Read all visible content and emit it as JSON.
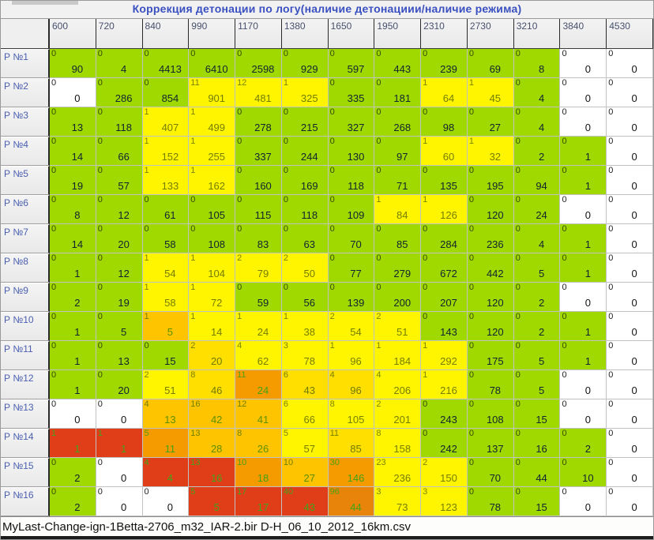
{
  "title": "Коррекция детонации по логу(наличие детонациии/наличие режима)",
  "status_bar": {
    "text": "MyLast-Change-ign-1Betta-2706_m32_IAR-2.bir D-H_06_10_2012_16km.csv"
  },
  "table": {
    "corner_label": "",
    "columns": [
      "600",
      "720",
      "840",
      "990",
      "1170",
      "1380",
      "1650",
      "1950",
      "2310",
      "2730",
      "3210",
      "3840",
      "4530"
    ],
    "cell_value_meaning": "top=наличие детонации, bottom=наличие режима",
    "palette": {
      "g": {
        "bg": "#9FD900",
        "t": "#3A4A00",
        "b": "#0F2430"
      },
      "w": {
        "bg": "#FFFFFF",
        "t": "#222222",
        "b": "#111111"
      },
      "y": {
        "bg": "#FFF500",
        "t": "#7B8400",
        "b": "#747E00"
      },
      "ya": {
        "bg": "#FFDF00",
        "t": "#777E00",
        "b": "#6F7A00"
      },
      "a": {
        "bg": "#FFC400",
        "t": "#6F7E00",
        "b": "#5E8F00"
      },
      "o": {
        "bg": "#F59B00",
        "t": "#4EA014",
        "b": "#44A314"
      },
      "d": {
        "bg": "#E88409",
        "t": "#4EA014",
        "b": "#44A314"
      },
      "r": {
        "bg": "#E03E18",
        "t": "#43A41B",
        "b": "#43A41B"
      }
    },
    "rows": [
      {
        "label": "Р №1",
        "cells": [
          [
            0,
            90,
            "g"
          ],
          [
            0,
            4,
            "g"
          ],
          [
            0,
            4413,
            "g"
          ],
          [
            0,
            6410,
            "g"
          ],
          [
            0,
            2598,
            "g"
          ],
          [
            0,
            929,
            "g"
          ],
          [
            0,
            597,
            "g"
          ],
          [
            0,
            443,
            "g"
          ],
          [
            0,
            239,
            "g"
          ],
          [
            0,
            69,
            "g"
          ],
          [
            0,
            8,
            "g"
          ],
          [
            0,
            0,
            "w"
          ],
          [
            0,
            0,
            "w"
          ]
        ]
      },
      {
        "label": "Р №2",
        "cells": [
          [
            0,
            0,
            "w"
          ],
          [
            0,
            286,
            "g"
          ],
          [
            0,
            854,
            "g"
          ],
          [
            11,
            901,
            "y"
          ],
          [
            12,
            481,
            "y"
          ],
          [
            1,
            325,
            "y"
          ],
          [
            0,
            335,
            "g"
          ],
          [
            0,
            181,
            "g"
          ],
          [
            1,
            64,
            "y"
          ],
          [
            1,
            45,
            "y"
          ],
          [
            0,
            4,
            "g"
          ],
          [
            0,
            0,
            "w"
          ],
          [
            0,
            0,
            "w"
          ]
        ]
      },
      {
        "label": "Р №3",
        "cells": [
          [
            0,
            13,
            "g"
          ],
          [
            0,
            118,
            "g"
          ],
          [
            1,
            407,
            "y"
          ],
          [
            1,
            499,
            "y"
          ],
          [
            0,
            278,
            "g"
          ],
          [
            0,
            215,
            "g"
          ],
          [
            0,
            327,
            "g"
          ],
          [
            0,
            268,
            "g"
          ],
          [
            0,
            98,
            "g"
          ],
          [
            0,
            27,
            "g"
          ],
          [
            0,
            4,
            "g"
          ],
          [
            0,
            0,
            "w"
          ],
          [
            0,
            0,
            "w"
          ]
        ]
      },
      {
        "label": "Р №4",
        "cells": [
          [
            0,
            14,
            "g"
          ],
          [
            0,
            66,
            "g"
          ],
          [
            1,
            152,
            "y"
          ],
          [
            1,
            255,
            "y"
          ],
          [
            0,
            337,
            "g"
          ],
          [
            0,
            244,
            "g"
          ],
          [
            0,
            130,
            "g"
          ],
          [
            0,
            97,
            "g"
          ],
          [
            1,
            60,
            "y"
          ],
          [
            1,
            32,
            "y"
          ],
          [
            0,
            2,
            "g"
          ],
          [
            0,
            1,
            "g"
          ],
          [
            0,
            0,
            "w"
          ]
        ]
      },
      {
        "label": "Р №5",
        "cells": [
          [
            0,
            19,
            "g"
          ],
          [
            0,
            57,
            "g"
          ],
          [
            1,
            133,
            "y"
          ],
          [
            1,
            162,
            "y"
          ],
          [
            0,
            160,
            "g"
          ],
          [
            0,
            169,
            "g"
          ],
          [
            0,
            118,
            "g"
          ],
          [
            0,
            71,
            "g"
          ],
          [
            0,
            135,
            "g"
          ],
          [
            0,
            195,
            "g"
          ],
          [
            0,
            94,
            "g"
          ],
          [
            0,
            1,
            "g"
          ],
          [
            0,
            0,
            "w"
          ]
        ]
      },
      {
        "label": "Р №6",
        "cells": [
          [
            0,
            8,
            "g"
          ],
          [
            0,
            12,
            "g"
          ],
          [
            0,
            61,
            "g"
          ],
          [
            0,
            105,
            "g"
          ],
          [
            0,
            115,
            "g"
          ],
          [
            0,
            118,
            "g"
          ],
          [
            0,
            109,
            "g"
          ],
          [
            1,
            84,
            "y"
          ],
          [
            1,
            126,
            "y"
          ],
          [
            0,
            120,
            "g"
          ],
          [
            0,
            24,
            "g"
          ],
          [
            0,
            0,
            "w"
          ],
          [
            0,
            0,
            "w"
          ]
        ]
      },
      {
        "label": "Р №7",
        "cells": [
          [
            0,
            14,
            "g"
          ],
          [
            0,
            20,
            "g"
          ],
          [
            0,
            58,
            "g"
          ],
          [
            0,
            108,
            "g"
          ],
          [
            0,
            83,
            "g"
          ],
          [
            0,
            63,
            "g"
          ],
          [
            0,
            70,
            "g"
          ],
          [
            0,
            85,
            "g"
          ],
          [
            0,
            284,
            "g"
          ],
          [
            0,
            236,
            "g"
          ],
          [
            0,
            4,
            "g"
          ],
          [
            0,
            1,
            "g"
          ],
          [
            0,
            0,
            "w"
          ]
        ]
      },
      {
        "label": "Р №8",
        "cells": [
          [
            0,
            1,
            "g"
          ],
          [
            0,
            12,
            "g"
          ],
          [
            1,
            54,
            "y"
          ],
          [
            1,
            104,
            "y"
          ],
          [
            2,
            79,
            "y"
          ],
          [
            2,
            50,
            "y"
          ],
          [
            0,
            77,
            "g"
          ],
          [
            0,
            279,
            "g"
          ],
          [
            0,
            672,
            "g"
          ],
          [
            0,
            442,
            "g"
          ],
          [
            0,
            5,
            "g"
          ],
          [
            0,
            1,
            "g"
          ],
          [
            0,
            0,
            "w"
          ]
        ]
      },
      {
        "label": "Р №9",
        "cells": [
          [
            0,
            2,
            "g"
          ],
          [
            0,
            19,
            "g"
          ],
          [
            1,
            58,
            "y"
          ],
          [
            1,
            72,
            "y"
          ],
          [
            0,
            59,
            "g"
          ],
          [
            0,
            56,
            "g"
          ],
          [
            0,
            139,
            "g"
          ],
          [
            0,
            200,
            "g"
          ],
          [
            0,
            207,
            "g"
          ],
          [
            0,
            120,
            "g"
          ],
          [
            0,
            2,
            "g"
          ],
          [
            0,
            0,
            "w"
          ],
          [
            0,
            0,
            "w"
          ]
        ]
      },
      {
        "label": "Р №10",
        "cells": [
          [
            0,
            1,
            "g"
          ],
          [
            0,
            5,
            "g"
          ],
          [
            1,
            5,
            "a"
          ],
          [
            1,
            14,
            "y"
          ],
          [
            1,
            24,
            "y"
          ],
          [
            1,
            38,
            "y"
          ],
          [
            2,
            54,
            "y"
          ],
          [
            2,
            51,
            "y"
          ],
          [
            0,
            143,
            "g"
          ],
          [
            0,
            120,
            "g"
          ],
          [
            0,
            2,
            "g"
          ],
          [
            0,
            1,
            "g"
          ],
          [
            0,
            0,
            "w"
          ]
        ]
      },
      {
        "label": "Р №11",
        "cells": [
          [
            0,
            1,
            "g"
          ],
          [
            0,
            13,
            "g"
          ],
          [
            0,
            15,
            "g"
          ],
          [
            2,
            20,
            "ya"
          ],
          [
            4,
            62,
            "y"
          ],
          [
            3,
            78,
            "y"
          ],
          [
            1,
            96,
            "y"
          ],
          [
            1,
            184,
            "y"
          ],
          [
            1,
            292,
            "y"
          ],
          [
            0,
            175,
            "g"
          ],
          [
            0,
            5,
            "g"
          ],
          [
            0,
            1,
            "g"
          ],
          [
            0,
            0,
            "w"
          ]
        ]
      },
      {
        "label": "Р №12",
        "cells": [
          [
            0,
            1,
            "g"
          ],
          [
            0,
            20,
            "g"
          ],
          [
            2,
            51,
            "y"
          ],
          [
            8,
            46,
            "ya"
          ],
          [
            11,
            24,
            "o"
          ],
          [
            6,
            43,
            "ya"
          ],
          [
            4,
            96,
            "ya"
          ],
          [
            4,
            206,
            "y"
          ],
          [
            1,
            216,
            "y"
          ],
          [
            0,
            78,
            "g"
          ],
          [
            0,
            5,
            "g"
          ],
          [
            0,
            0,
            "w"
          ],
          [
            0,
            0,
            "w"
          ]
        ]
      },
      {
        "label": "Р №13",
        "cells": [
          [
            0,
            0,
            "w"
          ],
          [
            0,
            0,
            "w"
          ],
          [
            4,
            13,
            "a"
          ],
          [
            16,
            42,
            "a"
          ],
          [
            12,
            41,
            "a"
          ],
          [
            6,
            66,
            "y"
          ],
          [
            8,
            105,
            "y"
          ],
          [
            2,
            201,
            "y"
          ],
          [
            0,
            243,
            "g"
          ],
          [
            0,
            108,
            "g"
          ],
          [
            0,
            15,
            "g"
          ],
          [
            0,
            0,
            "w"
          ],
          [
            0,
            0,
            "w"
          ]
        ]
      },
      {
        "label": "Р №14",
        "cells": [
          [
            1,
            1,
            "r"
          ],
          [
            1,
            1,
            "r"
          ],
          [
            5,
            11,
            "o"
          ],
          [
            13,
            28,
            "a"
          ],
          [
            8,
            26,
            "a"
          ],
          [
            5,
            57,
            "y"
          ],
          [
            11,
            85,
            "ya"
          ],
          [
            8,
            158,
            "y"
          ],
          [
            0,
            242,
            "g"
          ],
          [
            0,
            137,
            "g"
          ],
          [
            0,
            16,
            "g"
          ],
          [
            0,
            2,
            "g"
          ],
          [
            0,
            0,
            "w"
          ]
        ]
      },
      {
        "label": "Р №15",
        "cells": [
          [
            0,
            2,
            "g"
          ],
          [
            0,
            0,
            "w"
          ],
          [
            4,
            4,
            "r"
          ],
          [
            13,
            16,
            "r"
          ],
          [
            10,
            18,
            "o"
          ],
          [
            10,
            27,
            "a"
          ],
          [
            30,
            146,
            "o"
          ],
          [
            23,
            236,
            "y"
          ],
          [
            2,
            150,
            "y"
          ],
          [
            0,
            70,
            "g"
          ],
          [
            0,
            44,
            "g"
          ],
          [
            0,
            10,
            "g"
          ],
          [
            0,
            0,
            "w"
          ]
        ]
      },
      {
        "label": "Р №16",
        "cells": [
          [
            0,
            2,
            "g"
          ],
          [
            0,
            0,
            "w"
          ],
          [
            0,
            0,
            "w"
          ],
          [
            5,
            5,
            "r"
          ],
          [
            17,
            17,
            "r"
          ],
          [
            40,
            43,
            "r"
          ],
          [
            96,
            44,
            "d"
          ],
          [
            3,
            73,
            "y"
          ],
          [
            3,
            123,
            "y"
          ],
          [
            0,
            78,
            "g"
          ],
          [
            0,
            15,
            "g"
          ],
          [
            0,
            0,
            "w"
          ],
          [
            0,
            0,
            "w"
          ]
        ]
      }
    ]
  }
}
